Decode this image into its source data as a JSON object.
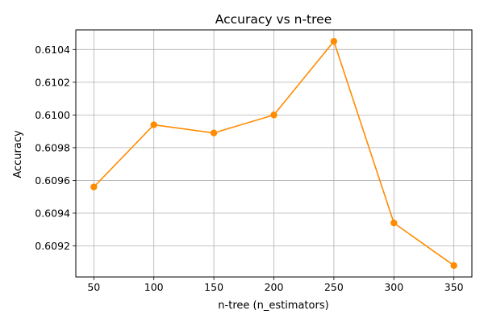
{
  "chart_data": {
    "type": "line",
    "title": "Accuracy vs n-tree",
    "xlabel": "n-tree (n_estimators)",
    "ylabel": "Accuracy",
    "x": [
      50,
      100,
      150,
      200,
      250,
      300,
      350
    ],
    "series": [
      {
        "values": [
          0.60956,
          0.60994,
          0.60989,
          0.61,
          0.61045,
          0.60934,
          0.60908
        ],
        "color": "#ff8c00",
        "marker": "circle"
      }
    ],
    "xticks": [
      "50",
      "100",
      "150",
      "200",
      "250",
      "300",
      "350"
    ],
    "yticks": [
      "0.6092",
      "0.6094",
      "0.6096",
      "0.6098",
      "0.6100",
      "0.6102",
      "0.6104"
    ],
    "xlim": [
      35,
      365
    ],
    "ylim": [
      0.60901,
      0.61052
    ],
    "grid": true
  }
}
